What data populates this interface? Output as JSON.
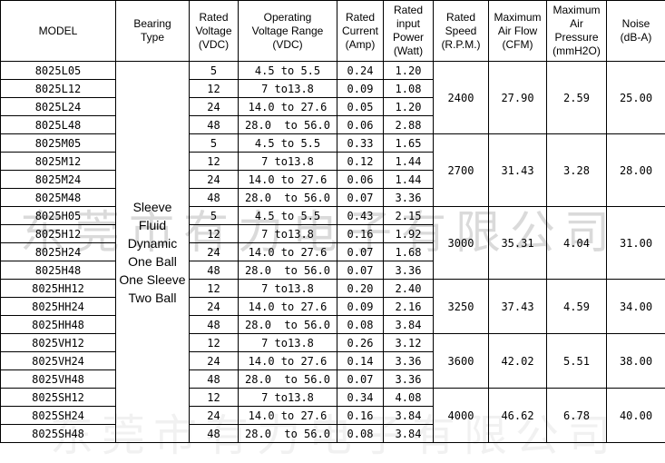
{
  "table": {
    "headers": [
      "MODEL",
      "Bearing\nType",
      "Rated\nVoltage\n(VDC)",
      "Operating\nVoltage Range\n(VDC)",
      "Rated\nCurrent\n(Amp)",
      "Rated\ninput\nPower\n(Watt)",
      "Rated\nSpeed\n(R.P.M.)",
      "Maximum\nAir Flow\n(CFM)",
      "Maximum\nAir\nPressure\n(mmH2O)",
      "Noise\n(dB-A)"
    ],
    "bearing_types": [
      "Sleeve",
      "Fluid",
      "Dynamic",
      "One Ball",
      "One Sleeve",
      "Two Ball"
    ],
    "rows": [
      {
        "model": "8025L05",
        "voltage": "5",
        "range": "4.5 to 5.5",
        "current": "0.24",
        "power": "1.20"
      },
      {
        "model": "8025L12",
        "voltage": "12",
        "range": "7 to13.8",
        "current": "0.09",
        "power": "1.08"
      },
      {
        "model": "8025L24",
        "voltage": "24",
        "range": "14.0 to 27.6",
        "current": "0.05",
        "power": "1.20"
      },
      {
        "model": "8025L48",
        "voltage": "48",
        "range": "28.0  to 56.0",
        "current": "0.06",
        "power": "2.88"
      },
      {
        "model": "8025M05",
        "voltage": "5",
        "range": "4.5 to 5.5",
        "current": "0.33",
        "power": "1.65"
      },
      {
        "model": "8025M12",
        "voltage": "12",
        "range": "7 to13.8",
        "current": "0.12",
        "power": "1.44"
      },
      {
        "model": "8025M24",
        "voltage": "24",
        "range": "14.0 to 27.6",
        "current": "0.06",
        "power": "1.44"
      },
      {
        "model": "8025M48",
        "voltage": "48",
        "range": "28.0  to 56.0",
        "current": "0.07",
        "power": "3.36"
      },
      {
        "model": "8025H05",
        "voltage": "5",
        "range": "4.5 to 5.5",
        "current": "0.43",
        "power": "2.15"
      },
      {
        "model": "8025H12",
        "voltage": "12",
        "range": "7 to13.8",
        "current": "0.16",
        "power": "1.92"
      },
      {
        "model": "8025H24",
        "voltage": "24",
        "range": "14.0 to 27.6",
        "current": "0.07",
        "power": "1.68"
      },
      {
        "model": "8025H48",
        "voltage": "48",
        "range": "28.0  to 56.0",
        "current": "0.07",
        "power": "3.36"
      },
      {
        "model": "8025HH12",
        "voltage": "12",
        "range": "7 to13.8",
        "current": "0.20",
        "power": "2.40"
      },
      {
        "model": "8025HH24",
        "voltage": "24",
        "range": "14.0 to 27.6",
        "current": "0.09",
        "power": "2.16"
      },
      {
        "model": "8025HH48",
        "voltage": "48",
        "range": "28.0  to 56.0",
        "current": "0.08",
        "power": "3.84"
      },
      {
        "model": "8025VH12",
        "voltage": "12",
        "range": "7 to13.8",
        "current": "0.26",
        "power": "3.12"
      },
      {
        "model": "8025VH24",
        "voltage": "24",
        "range": "14.0 to 27.6",
        "current": "0.14",
        "power": "3.36"
      },
      {
        "model": "8025VH48",
        "voltage": "48",
        "range": "28.0  to 56.0",
        "current": "0.07",
        "power": "3.36"
      },
      {
        "model": "8025SH12",
        "voltage": "12",
        "range": "7 to13.8",
        "current": "0.34",
        "power": "4.08"
      },
      {
        "model": "8025SH24",
        "voltage": "24",
        "range": "14.0 to 27.6",
        "current": "0.16",
        "power": "3.84"
      },
      {
        "model": "8025SH48",
        "voltage": "48",
        "range": "28.0  to 56.0",
        "current": "0.08",
        "power": "3.84"
      }
    ],
    "groups": [
      {
        "row_count": 4,
        "speed": "2400",
        "airflow": "27.90",
        "pressure": "2.59",
        "noise": "25.00"
      },
      {
        "row_count": 4,
        "speed": "2700",
        "airflow": "31.43",
        "pressure": "3.28",
        "noise": "28.00"
      },
      {
        "row_count": 4,
        "speed": "3000",
        "airflow": "35.31",
        "pressure": "4.04",
        "noise": "31.00"
      },
      {
        "row_count": 3,
        "speed": "3250",
        "airflow": "37.43",
        "pressure": "4.59",
        "noise": "34.00"
      },
      {
        "row_count": 3,
        "speed": "3600",
        "airflow": "42.02",
        "pressure": "5.51",
        "noise": "38.00"
      },
      {
        "row_count": 3,
        "speed": "4000",
        "airflow": "46.62",
        "pressure": "6.78",
        "noise": "40.00"
      }
    ]
  },
  "watermark": {
    "text": "东莞市有力电子有限公司",
    "color": "#d2d2d2"
  }
}
